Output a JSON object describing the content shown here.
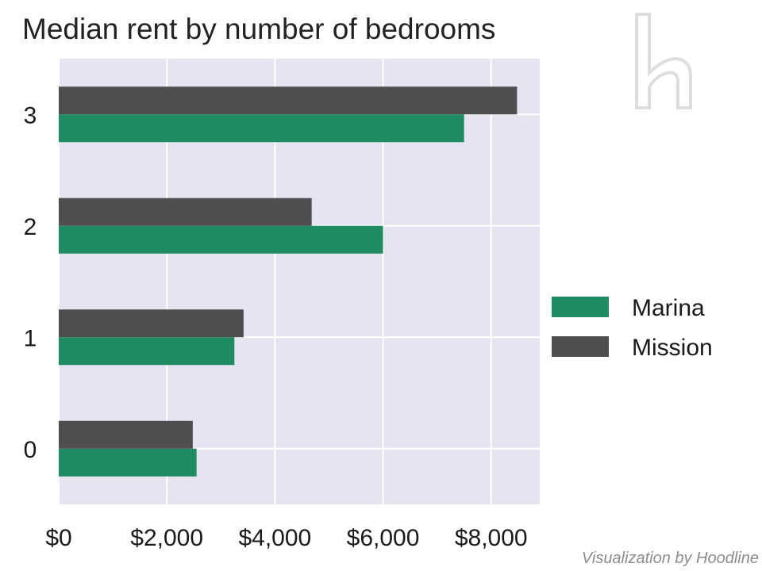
{
  "chart_data": {
    "type": "bar",
    "orientation": "horizontal",
    "title": "Median rent by number of bedrooms",
    "categories": [
      "0",
      "1",
      "2",
      "3"
    ],
    "series": [
      {
        "name": "Marina",
        "color": "#1f8b63",
        "values": [
          2550,
          3250,
          6000,
          7500
        ]
      },
      {
        "name": "Mission",
        "color": "#4f4f4f",
        "values": [
          2480,
          3420,
          4680,
          8480
        ]
      }
    ],
    "xlim": [
      0,
      8900
    ],
    "xticks": [
      0,
      2000,
      4000,
      6000,
      8000
    ],
    "xtick_labels": [
      "$0",
      "$2,000",
      "$4,000",
      "$6,000",
      "$8,000"
    ],
    "grid": true,
    "legend_position": "center-right"
  },
  "watermark_icon": "hoodline-h-logo",
  "credit": "Visualization by Hoodline"
}
